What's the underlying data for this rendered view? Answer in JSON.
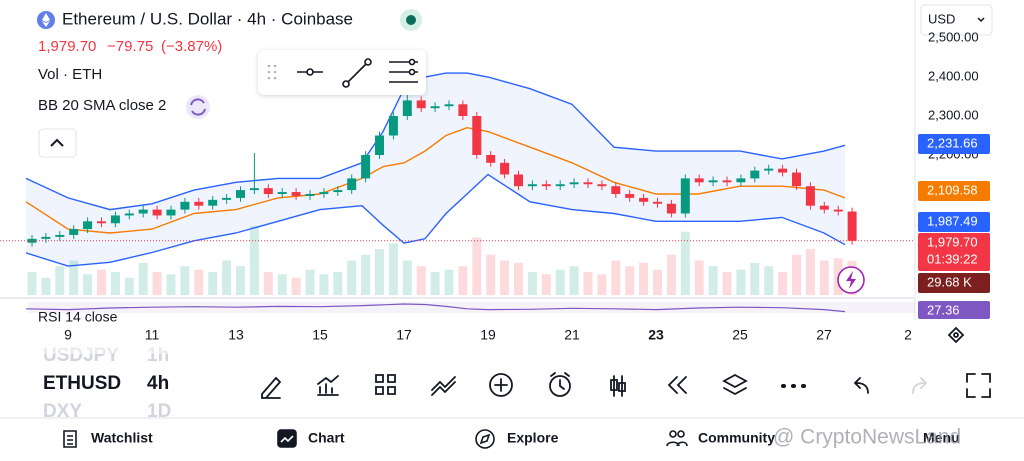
{
  "header": {
    "title": "Ethereum / U.S. Dollar · 4h · Coinbase",
    "price": "1,979.70",
    "change": "−79.75",
    "change_pct": "(−3.87%)",
    "volume_indicator": "Vol · ETH",
    "bb_indicator": "BB 20 SMA close 2",
    "rsi_indicator": "RSI 14 close",
    "currency": "USD"
  },
  "price_axis": {
    "labels": [
      {
        "value": 2500,
        "label": "2,500.00"
      },
      {
        "value": 2400,
        "label": "2,400.00"
      },
      {
        "value": 2300,
        "label": "2,300.00"
      },
      {
        "value": 2200,
        "label": "2,200.00"
      }
    ]
  },
  "badges": {
    "bb_upper": "2,231.66",
    "bb_middle": "2,109.58",
    "bb_lower": "1,987.49",
    "last_price": "1,979.70",
    "countdown": "01:39:22",
    "volume": "29.68 K",
    "rsi": "27.36"
  },
  "date_axis": [
    "9",
    "11",
    "13",
    "15",
    "17",
    "19",
    "21",
    "23",
    "25",
    "27",
    "2"
  ],
  "chart": {
    "open": [
      1975,
      1985,
      1990,
      1995,
      2010,
      2030,
      2025,
      2045,
      2050,
      2060,
      2045,
      2060,
      2080,
      2070,
      2085,
      2090,
      2110,
      2115,
      2100,
      2105,
      2095,
      2100,
      2105,
      2110,
      2140,
      2200,
      2250,
      2300,
      2340,
      2320,
      2325,
      2330,
      2300,
      2200,
      2180,
      2150,
      2120,
      2125,
      2120,
      2125,
      2130,
      2125,
      2120,
      2100,
      2090,
      2080,
      2075,
      2050,
      2140,
      2130,
      2135,
      2130,
      2140,
      2160,
      2165,
      2155,
      2120,
      2070,
      2060,
      2055
    ],
    "high": [
      1995,
      2000,
      2005,
      2020,
      2040,
      2040,
      2055,
      2060,
      2070,
      2070,
      2070,
      2090,
      2090,
      2095,
      2100,
      2120,
      2205,
      2125,
      2115,
      2115,
      2110,
      2115,
      2120,
      2150,
      2210,
      2260,
      2310,
      2360,
      2350,
      2335,
      2340,
      2340,
      2310,
      2210,
      2190,
      2160,
      2135,
      2135,
      2135,
      2140,
      2140,
      2135,
      2130,
      2110,
      2100,
      2090,
      2085,
      2150,
      2150,
      2145,
      2145,
      2150,
      2170,
      2175,
      2175,
      2165,
      2130,
      2080,
      2070,
      2065
    ],
    "low": [
      1965,
      1975,
      1980,
      1985,
      2000,
      2015,
      2015,
      2035,
      2040,
      2035,
      2035,
      2050,
      2060,
      2060,
      2075,
      2080,
      2100,
      2090,
      2090,
      2085,
      2085,
      2090,
      2095,
      2100,
      2130,
      2190,
      2240,
      2290,
      2310,
      2310,
      2315,
      2290,
      2190,
      2170,
      2140,
      2110,
      2110,
      2110,
      2110,
      2115,
      2115,
      2110,
      2090,
      2080,
      2070,
      2065,
      2040,
      2040,
      2120,
      2120,
      2120,
      2120,
      2130,
      2150,
      2145,
      2110,
      2060,
      2050,
      2045,
      1970
    ],
    "close": [
      1985,
      1990,
      1995,
      2010,
      2030,
      2025,
      2045,
      2050,
      2060,
      2045,
      2060,
      2080,
      2070,
      2085,
      2090,
      2110,
      2115,
      2100,
      2105,
      2095,
      2100,
      2105,
      2110,
      2140,
      2200,
      2250,
      2300,
      2340,
      2320,
      2325,
      2330,
      2300,
      2200,
      2180,
      2150,
      2120,
      2125,
      2120,
      2125,
      2130,
      2125,
      2120,
      2100,
      2090,
      2080,
      2075,
      2050,
      2140,
      2130,
      2135,
      2130,
      2140,
      2160,
      2165,
      2155,
      2120,
      2070,
      2060,
      2055,
      1980
    ],
    "volume": [
      20,
      15,
      25,
      30,
      18,
      22,
      20,
      15,
      28,
      20,
      18,
      25,
      22,
      20,
      30,
      25,
      60,
      20,
      18,
      15,
      22,
      18,
      20,
      30,
      35,
      40,
      45,
      30,
      25,
      20,
      22,
      25,
      50,
      35,
      30,
      28,
      20,
      18,
      22,
      25,
      20,
      18,
      30,
      25,
      28,
      22,
      35,
      55,
      30,
      25,
      20,
      22,
      28,
      25,
      20,
      35,
      40,
      30,
      32,
      29.68
    ],
    "band_x": [
      8,
      9,
      10,
      11,
      12,
      13,
      14,
      15,
      16,
      16.5,
      17,
      17.5,
      18,
      18.5,
      19,
      20,
      21,
      22,
      23,
      24,
      25,
      26,
      27,
      27.5
    ],
    "bb_upper": [
      2140,
      2090,
      2060,
      2075,
      2110,
      2130,
      2140,
      2140,
      2180,
      2260,
      2370,
      2400,
      2410,
      2410,
      2400,
      2370,
      2330,
      2220,
      2210,
      2210,
      2210,
      2190,
      2210,
      2225
    ],
    "bb_middle": [
      2080,
      2010,
      2000,
      2010,
      2050,
      2060,
      2090,
      2100,
      2140,
      2170,
      2180,
      2210,
      2250,
      2270,
      2260,
      2220,
      2180,
      2130,
      2100,
      2100,
      2120,
      2120,
      2110,
      2090
    ],
    "bb_lower": [
      1949,
      1915,
      1925,
      1950,
      1980,
      2000,
      2030,
      2060,
      2070,
      2020,
      1974,
      1985,
      2050,
      2100,
      2150,
      2080,
      2060,
      2050,
      2030,
      2030,
      2030,
      2040,
      2000,
      1970
    ],
    "rsi": [
      45,
      40,
      50,
      55,
      58,
      55,
      60,
      58,
      65,
      70,
      75,
      72,
      60,
      45,
      40,
      42,
      48,
      45,
      40,
      50,
      55,
      52,
      40,
      27.36
    ]
  },
  "symbols": [
    {
      "symbol": "USDJPY",
      "interval": "1h"
    },
    {
      "symbol": "ETHUSD",
      "interval": "4h"
    },
    {
      "symbol": "DXY",
      "interval": "1D"
    }
  ],
  "nav": [
    "Watchlist",
    "Chart",
    "Explore",
    "Community",
    "Menu"
  ],
  "watermark": "@ CryptoNewsLand"
}
